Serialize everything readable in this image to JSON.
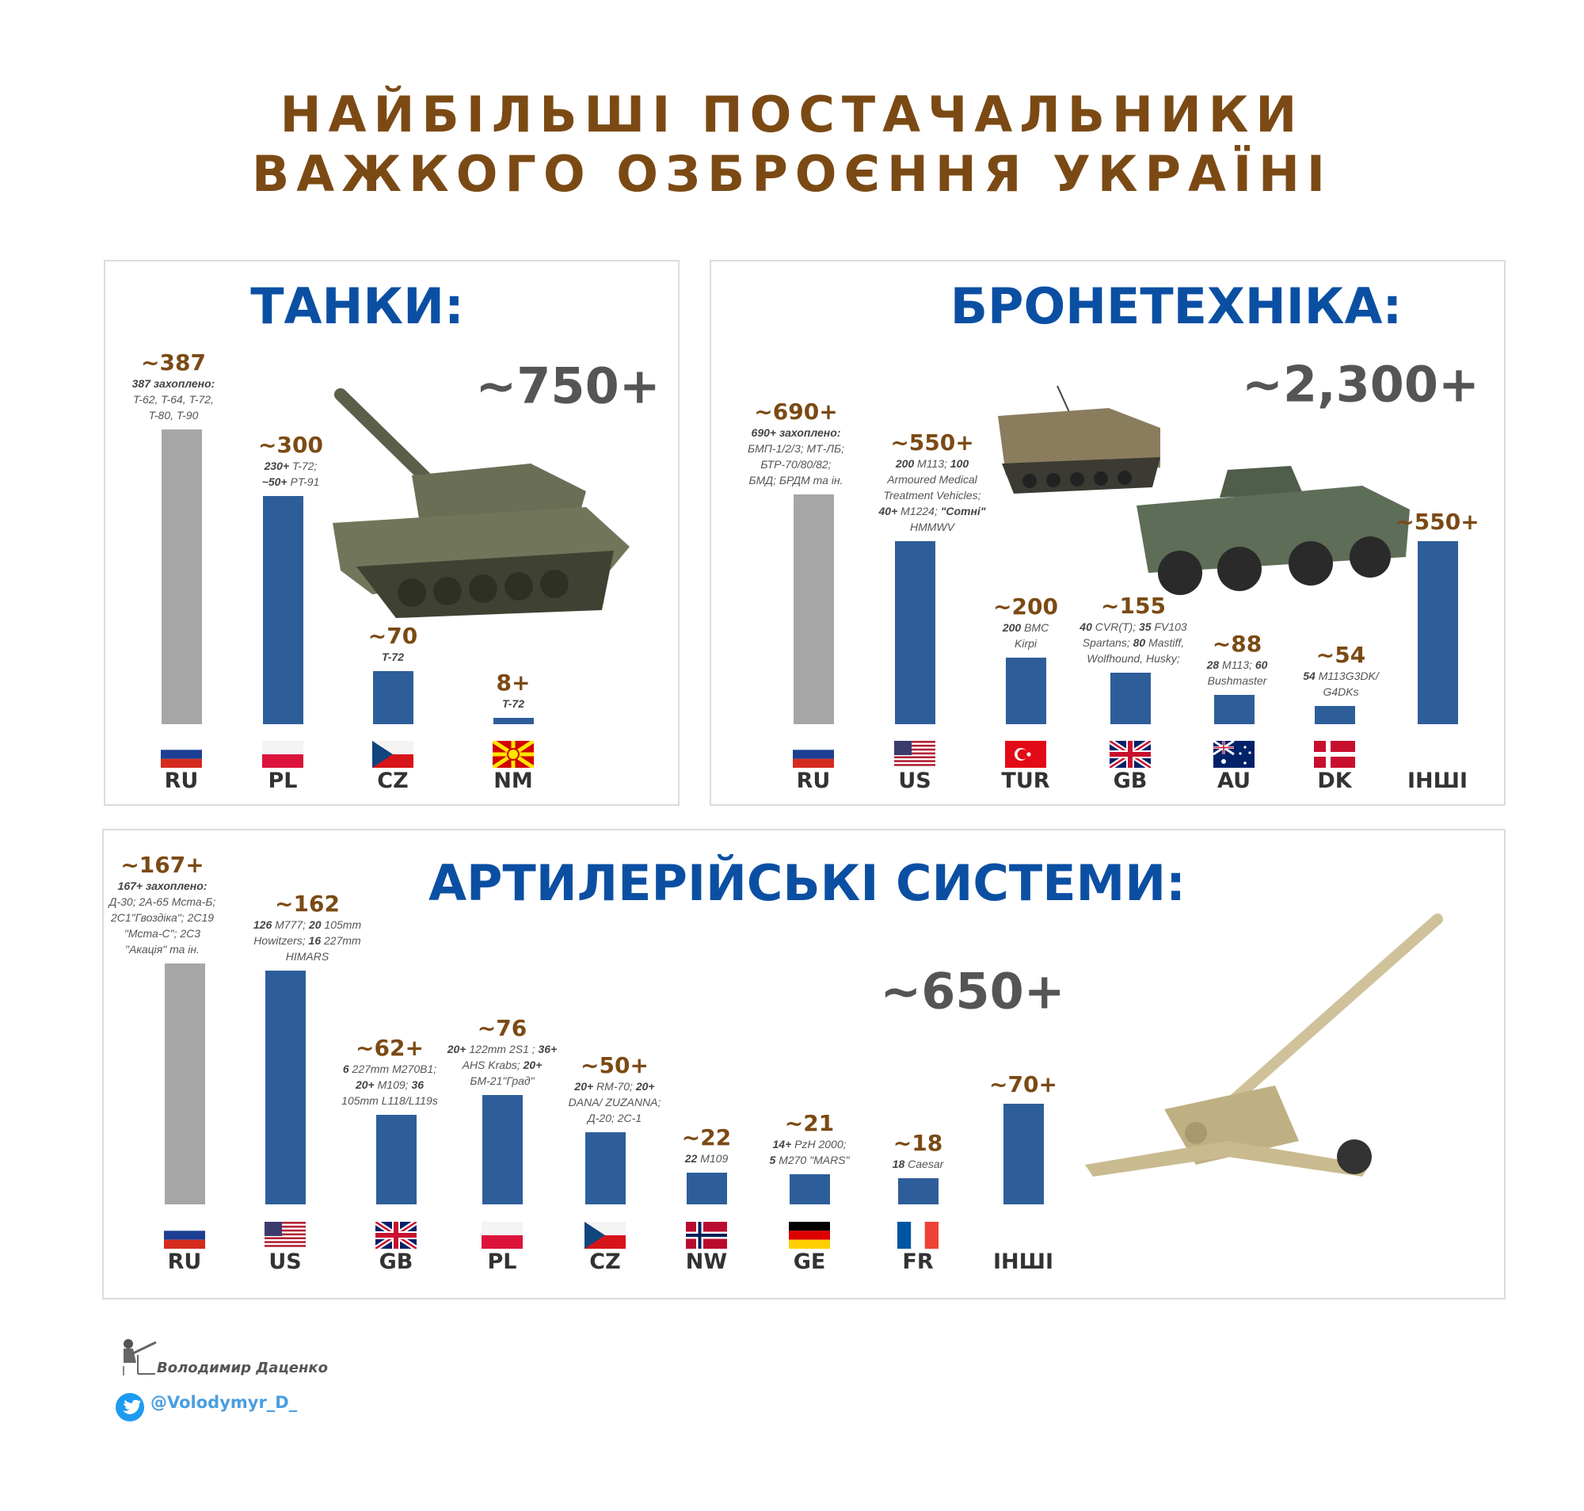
{
  "title": {
    "line1": "НАЙБІЛЬШІ ПОСТАЧАЛЬНИКИ",
    "line2": "ВАЖКОГО ОЗБРОЄННЯ УКРАЇНІ"
  },
  "colors": {
    "title": "#7b4a14",
    "heading": "#0b4fa3",
    "bar_ally": "#2e5e9a",
    "bar_captured": "#a6a6a6",
    "value_label": "#7b4a14"
  },
  "footer": {
    "author": "Володимир Даценко",
    "twitter": "@Volodymyr_D_",
    "twitter_icon": "twitter-bird-icon"
  },
  "chart_data": [
    {
      "type": "bar",
      "title": "ТАНКИ:",
      "total": "~750+",
      "categories": [
        "RU",
        "PL",
        "CZ",
        "NM"
      ],
      "values": [
        387,
        300,
        70,
        8
      ],
      "value_labels": [
        "~387",
        "~300",
        "~70",
        "8+"
      ],
      "captured": [
        true,
        false,
        false,
        false
      ],
      "notes": [
        [
          [
            {
              "t": "387 захоплено:",
              "b": true
            }
          ],
          [
            {
              "t": "T-62, T-64, T-72,"
            }
          ],
          [
            {
              "t": "T-80, T-90"
            }
          ]
        ],
        [
          [
            {
              "t": "230+",
              "b": true
            },
            {
              "t": " T-72;"
            }
          ],
          [
            {
              "t": "~50+",
              "b": true
            },
            {
              "t": " PT-91"
            }
          ]
        ],
        [
          [
            {
              "t": "T-72",
              "b": true
            }
          ]
        ],
        [
          [
            {
              "t": "T-72",
              "b": true
            }
          ]
        ]
      ]
    },
    {
      "type": "bar",
      "title": "БРОНЕТЕХНІКА:",
      "total": "~2,300+",
      "categories": [
        "RU",
        "US",
        "TUR",
        "GB",
        "AU",
        "DK",
        "ІНШІ"
      ],
      "values": [
        690,
        550,
        200,
        155,
        88,
        54,
        550
      ],
      "value_labels": [
        "~690+",
        "~550+",
        "~200",
        "~155",
        "~88",
        "~54",
        "~550+"
      ],
      "captured": [
        true,
        false,
        false,
        false,
        false,
        false,
        false
      ],
      "notes": [
        [
          [
            {
              "t": "690+ захоплено:",
              "b": true
            }
          ],
          [
            {
              "t": "БМП-1/2/3; МТ-ЛБ;"
            }
          ],
          [
            {
              "t": "БТР-70/80/82;"
            }
          ],
          [
            {
              "t": "БМД; БРДМ та ін."
            }
          ]
        ],
        [
          [
            {
              "t": "200",
              "b": true
            },
            {
              "t": " M113; "
            },
            {
              "t": "100",
              "b": true
            }
          ],
          [
            {
              "t": "Armoured Medical"
            }
          ],
          [
            {
              "t": "Treatment Vehicles;"
            }
          ],
          [
            {
              "t": "40+",
              "b": true
            },
            {
              "t": " M1224; "
            },
            {
              "t": "\"Сотні\"",
              "b": true
            }
          ],
          [
            {
              "t": "HMMWV"
            }
          ]
        ],
        [
          [
            {
              "t": "200",
              "b": true
            },
            {
              "t": " BMC"
            }
          ],
          [
            {
              "t": "Kirpi"
            }
          ]
        ],
        [
          [
            {
              "t": "40",
              "b": true
            },
            {
              "t": " CVR(T); "
            },
            {
              "t": "35",
              "b": true
            },
            {
              "t": " FV103"
            }
          ],
          [
            {
              "t": "Spartans; "
            },
            {
              "t": "80",
              "b": true
            },
            {
              "t": " Mastiff,"
            }
          ],
          [
            {
              "t": "Wolfhound,  Husky;"
            }
          ]
        ],
        [
          [
            {
              "t": "28",
              "b": true
            },
            {
              "t": " M113; "
            },
            {
              "t": "60",
              "b": true
            }
          ],
          [
            {
              "t": "Bushmaster"
            }
          ]
        ],
        [
          [
            {
              "t": "54",
              "b": true
            },
            {
              "t": " M113G3DK/"
            }
          ],
          [
            {
              "t": "G4DKs"
            }
          ]
        ],
        []
      ]
    },
    {
      "type": "bar",
      "title": "АРТИЛЕРІЙСЬКІ СИСТЕМИ:",
      "total": "~650+",
      "categories": [
        "RU",
        "US",
        "GB",
        "PL",
        "CZ",
        "NW",
        "GE",
        "FR",
        "ІНШІ"
      ],
      "values": [
        167,
        162,
        62,
        76,
        50,
        22,
        21,
        18,
        70
      ],
      "value_labels": [
        "~167+",
        "~162",
        "~62+",
        "~76",
        "~50+",
        "~22",
        "~21",
        "~18",
        "~70+"
      ],
      "captured": [
        true,
        false,
        false,
        false,
        false,
        false,
        false,
        false,
        false
      ],
      "notes": [
        [
          [
            {
              "t": "167+ захоплено:",
              "b": true
            }
          ],
          [
            {
              "t": "Д-30; 2А-65 Мста-Б;"
            }
          ],
          [
            {
              "t": "2С1\"Гвоздіка\"; 2С19"
            }
          ],
          [
            {
              "t": "\"Мста-С\"; 2С3"
            }
          ],
          [
            {
              "t": "\"Акація\" та ін."
            }
          ]
        ],
        [
          [
            {
              "t": "126",
              "b": true
            },
            {
              "t": " M777; "
            },
            {
              "t": "20",
              "b": true
            },
            {
              "t": " 105mm"
            }
          ],
          [
            {
              "t": "Howitzers; "
            },
            {
              "t": "16",
              "b": true
            },
            {
              "t": " 227mm"
            }
          ],
          [
            {
              "t": "HIMARS"
            }
          ]
        ],
        [
          [
            {
              "t": "6",
              "b": true
            },
            {
              "t": " 227mm M270B1;"
            }
          ],
          [
            {
              "t": "20+",
              "b": true
            },
            {
              "t": " M109; "
            },
            {
              "t": "36",
              "b": true
            }
          ],
          [
            {
              "t": "105mm L118/L119s"
            }
          ]
        ],
        [
          [
            {
              "t": "20+",
              "b": true
            },
            {
              "t": " 122mm 2S1 ; "
            },
            {
              "t": "36+",
              "b": true
            }
          ],
          [
            {
              "t": "AHS Krabs; "
            },
            {
              "t": "20+",
              "b": true
            }
          ],
          [
            {
              "t": "БМ-21\"Град\""
            }
          ]
        ],
        [
          [
            {
              "t": "20+",
              "b": true
            },
            {
              "t": " RM-70; "
            },
            {
              "t": "20+",
              "b": true
            }
          ],
          [
            {
              "t": "DANA/ ZUZANNA;"
            }
          ],
          [
            {
              "t": "Д-20; 2С-1"
            }
          ]
        ],
        [
          [
            {
              "t": "22",
              "b": true
            },
            {
              "t": " M109"
            }
          ]
        ],
        [
          [
            {
              "t": "14+",
              "b": true
            },
            {
              "t": " PzH 2000;"
            }
          ],
          [
            {
              "t": "5",
              "b": true
            },
            {
              "t": " M270 \"MARS\""
            }
          ]
        ],
        [
          [
            {
              "t": "18",
              "b": true
            },
            {
              "t": " Caesar"
            }
          ]
        ],
        []
      ]
    }
  ]
}
